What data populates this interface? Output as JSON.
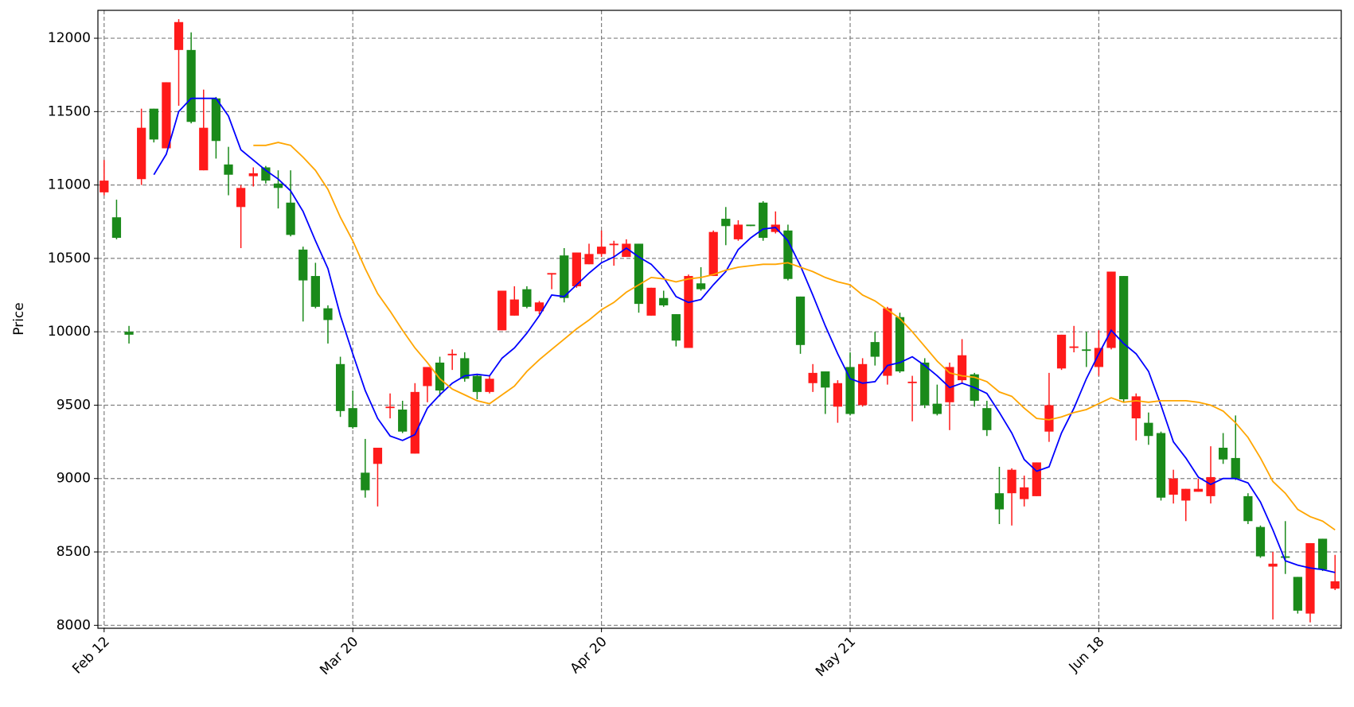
{
  "chart_data": {
    "type": "candlestick",
    "ylabel": "Price",
    "xlim": [
      -0.5,
      99.5
    ],
    "xticks": [
      {
        "value": 0,
        "label": "Feb 12"
      },
      {
        "value": 20,
        "label": "Mar 20"
      },
      {
        "value": 40,
        "label": "Apr 20"
      },
      {
        "value": 60,
        "label": "May 21"
      },
      {
        "value": 80,
        "label": "Jun 18"
      }
    ],
    "ylim": [
      7980,
      12190
    ],
    "yticks": [
      8000,
      8500,
      9000,
      9500,
      10000,
      10500,
      11000,
      11500,
      12000
    ],
    "grid": true,
    "up_color": "#ff1a1a",
    "down_color": "#1a8a1a",
    "open": [
      10950,
      10780,
      10000,
      11040,
      11520,
      11250,
      11920,
      11920,
      11100,
      11590,
      11140,
      10850,
      11060,
      11120,
      11010,
      10880,
      10560,
      10380,
      10160,
      9780,
      9480,
      9040,
      9100,
      9480,
      9470,
      9170,
      9630,
      9790,
      9840,
      9820,
      9700,
      9590,
      10010,
      10110,
      10290,
      10140,
      10390,
      10520,
      10310,
      10460,
      10530,
      10590,
      10510,
      10600,
      10110,
      10230,
      10120,
      9890,
      10330,
      10380,
      10770,
      10630,
      10730,
      10880,
      10680,
      10690,
      10240,
      9650,
      9730,
      9490,
      9760,
      9500,
      9930,
      9700,
      10100,
      9650,
      9790,
      9510,
      9520,
      9670,
      9710,
      9480,
      8900,
      8900,
      8860,
      8880,
      9320,
      9750,
      9890,
      9880,
      9760,
      9890,
      10380,
      9410,
      9380,
      9310,
      8890,
      8850,
      8910,
      8880,
      9210,
      9140,
      8880,
      8670,
      8400,
      8470,
      8330,
      8080,
      8590,
      8250
    ],
    "high": [
      11170,
      10900,
      10040,
      11520,
      11520,
      11700,
      12130,
      12040,
      11650,
      11600,
      11260,
      11000,
      11120,
      11130,
      11100,
      11100,
      10580,
      10470,
      10180,
      9830,
      9600,
      9270,
      9210,
      9580,
      9530,
      9650,
      9760,
      9830,
      9880,
      9860,
      9710,
      9700,
      10280,
      10310,
      10310,
      10210,
      10400,
      10570,
      10540,
      10600,
      10690,
      10620,
      10630,
      10600,
      10300,
      10280,
      10120,
      10390,
      10440,
      10690,
      10850,
      10760,
      10730,
      10890,
      10820,
      10730,
      10240,
      9780,
      9730,
      9670,
      9860,
      9820,
      10000,
      10170,
      10130,
      9700,
      9820,
      9640,
      9790,
      9950,
      9720,
      9530,
      9080,
      9070,
      9020,
      9110,
      9720,
      9980,
      10040,
      10000,
      10010,
      10410,
      10380,
      9580,
      9450,
      9320,
      9060,
      8930,
      9000,
      9220,
      9310,
      9430,
      8900,
      8680,
      8500,
      8710,
      8330,
      8560,
      8590,
      8480
    ],
    "low": [
      10930,
      10630,
      9920,
      11000,
      11290,
      11250,
      11540,
      11420,
      11100,
      11180,
      10930,
      10570,
      10990,
      11010,
      10840,
      10650,
      10070,
      10160,
      9920,
      9420,
      9340,
      8870,
      8810,
      9410,
      9310,
      9170,
      9520,
      9560,
      9740,
      9660,
      9540,
      9580,
      10010,
      10110,
      10160,
      10120,
      10290,
      10200,
      10300,
      10460,
      10510,
      10450,
      10510,
      10130,
      10110,
      10170,
      9900,
      9890,
      10280,
      10380,
      10590,
      10620,
      10720,
      10620,
      10670,
      10350,
      9850,
      9590,
      9440,
      9380,
      9430,
      9490,
      9770,
      9640,
      9720,
      9390,
      9480,
      9430,
      9330,
      9650,
      9490,
      9290,
      8690,
      8680,
      8810,
      8880,
      9250,
      9740,
      9860,
      9760,
      9700,
      9880,
      9520,
      9260,
      9230,
      8850,
      8830,
      8710,
      8910,
      8830,
      9100,
      8990,
      8690,
      8460,
      8040,
      8350,
      8080,
      8020,
      8370,
      8240
    ],
    "close": [
      11030,
      10640,
      9980,
      11390,
      11310,
      11700,
      12110,
      11430,
      11390,
      11300,
      11070,
      10980,
      11080,
      11030,
      10980,
      10660,
      10350,
      10170,
      10080,
      9460,
      9350,
      8920,
      9210,
      9490,
      9320,
      9590,
      9760,
      9600,
      9850,
      9680,
      9590,
      9680,
      10280,
      10220,
      10170,
      10200,
      10400,
      10230,
      10540,
      10530,
      10580,
      10600,
      10600,
      10190,
      10300,
      10180,
      9940,
      10380,
      10290,
      10680,
      10720,
      10730,
      10720,
      10640,
      10730,
      10360,
      9910,
      9720,
      9620,
      9650,
      9440,
      9780,
      9830,
      10160,
      9730,
      9660,
      9500,
      9440,
      9760,
      9840,
      9530,
      9330,
      8790,
      9060,
      8940,
      9110,
      9500,
      9980,
      9900,
      9870,
      9890,
      10410,
      9540,
      9560,
      9290,
      8870,
      9000,
      8930,
      8930,
      9010,
      9130,
      9000,
      8710,
      8470,
      8420,
      8460,
      8100,
      8560,
      8380,
      8300
    ],
    "lines": [
      {
        "color": "#0000ff",
        "values": [
          null,
          null,
          null,
          null,
          11070,
          11210,
          11500,
          11590,
          11590,
          11590,
          11470,
          11240,
          11170,
          11100,
          11040,
          10960,
          10820,
          10620,
          10430,
          10110,
          9850,
          9600,
          9410,
          9290,
          9260,
          9300,
          9480,
          9570,
          9650,
          9700,
          9710,
          9700,
          9820,
          9890,
          9990,
          10110,
          10250,
          10240,
          10320,
          10400,
          10470,
          10510,
          10570,
          10510,
          10460,
          10370,
          10240,
          10200,
          10220,
          10320,
          10410,
          10560,
          10640,
          10700,
          10710,
          10620,
          10450,
          10250,
          10040,
          9850,
          9680,
          9650,
          9660,
          9770,
          9790,
          9830,
          9770,
          9700,
          9620,
          9650,
          9620,
          9580,
          9450,
          9310,
          9130,
          9050,
          9080,
          9310,
          9480,
          9680,
          9850,
          10010,
          9920,
          9850,
          9730,
          9500,
          9250,
          9140,
          9010,
          8960,
          9000,
          9000,
          8970,
          8840,
          8650,
          8440,
          8410,
          8390,
          8380,
          8360
        ]
      },
      {
        "color": "#ffa500",
        "values": [
          null,
          null,
          null,
          null,
          null,
          null,
          null,
          null,
          null,
          null,
          null,
          null,
          11270,
          11270,
          11290,
          11270,
          11190,
          11100,
          10970,
          10780,
          10620,
          10430,
          10260,
          10140,
          10010,
          9890,
          9790,
          9680,
          9610,
          9570,
          9530,
          9510,
          9570,
          9630,
          9730,
          9810,
          9880,
          9950,
          10020,
          10080,
          10150,
          10200,
          10270,
          10320,
          10370,
          10360,
          10340,
          10360,
          10370,
          10390,
          10420,
          10440,
          10450,
          10460,
          10460,
          10470,
          10440,
          10410,
          10370,
          10340,
          10320,
          10250,
          10210,
          10150,
          10090,
          10000,
          9900,
          9800,
          9720,
          9700,
          9690,
          9660,
          9590,
          9560,
          9480,
          9410,
          9400,
          9420,
          9450,
          9470,
          9510,
          9550,
          9520,
          9530,
          9520,
          9530,
          9530,
          9530,
          9520,
          9500,
          9460,
          9380,
          9280,
          9140,
          8980,
          8900,
          8790,
          8740,
          8710,
          8650
        ]
      }
    ]
  }
}
